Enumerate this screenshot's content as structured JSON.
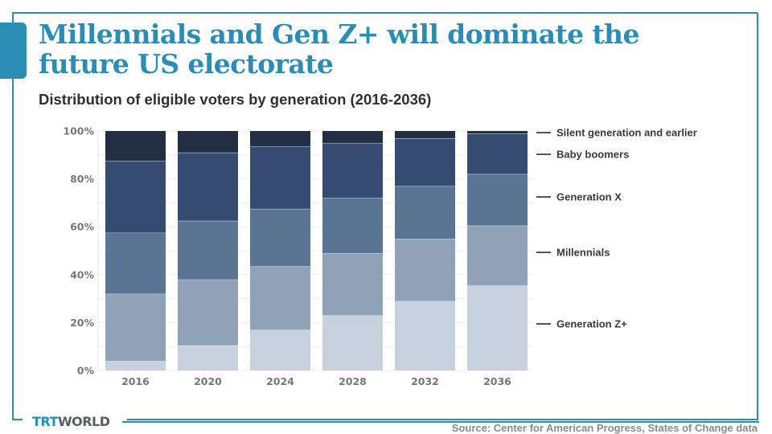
{
  "header": {
    "title": "Millennials and Gen Z+ will dominate the future US electorate",
    "subtitle": "Distribution of eligible voters by generation (2016-2036)"
  },
  "footer": {
    "logo_part1": "TRT",
    "logo_part2": "WORLD",
    "source": "Source: Center for American Progress, States of Change data"
  },
  "colors": {
    "brand": "#2a8db5",
    "gen_z": "#c7d1de",
    "millennials": "#8fa2b8",
    "gen_x": "#5a7593",
    "boomers": "#364b72",
    "silent": "#222f43"
  },
  "chart_data": {
    "type": "bar",
    "stacked": true,
    "title": "Distribution of eligible voters by generation (2016-2036)",
    "xlabel": "",
    "ylabel": "",
    "ylim": [
      0,
      100
    ],
    "yticks": [
      0,
      20,
      40,
      60,
      80,
      100
    ],
    "ytick_labels": [
      "0%",
      "20%",
      "40%",
      "60%",
      "80%",
      "100%"
    ],
    "grid": true,
    "legend_position": "right",
    "categories": [
      "2016",
      "2020",
      "2024",
      "2028",
      "2032",
      "2036"
    ],
    "series": [
      {
        "name": "Generation Z+",
        "color": "#c7d1de",
        "values": [
          4,
          10.5,
          17,
          23,
          29,
          35.5
        ]
      },
      {
        "name": "Millennials",
        "color": "#8fa2b8",
        "values": [
          28,
          27.5,
          26.5,
          26,
          26,
          25
        ]
      },
      {
        "name": "Generation X",
        "color": "#5a7593",
        "values": [
          25.5,
          24.5,
          24,
          23,
          22,
          21.5
        ]
      },
      {
        "name": "Baby boomers",
        "color": "#364b72",
        "values": [
          30,
          28.5,
          26,
          23,
          20,
          17
        ]
      },
      {
        "name": "Silent generation and earlier",
        "color": "#222f43",
        "values": [
          12.5,
          9,
          6.5,
          5,
          3,
          1
        ]
      }
    ]
  }
}
